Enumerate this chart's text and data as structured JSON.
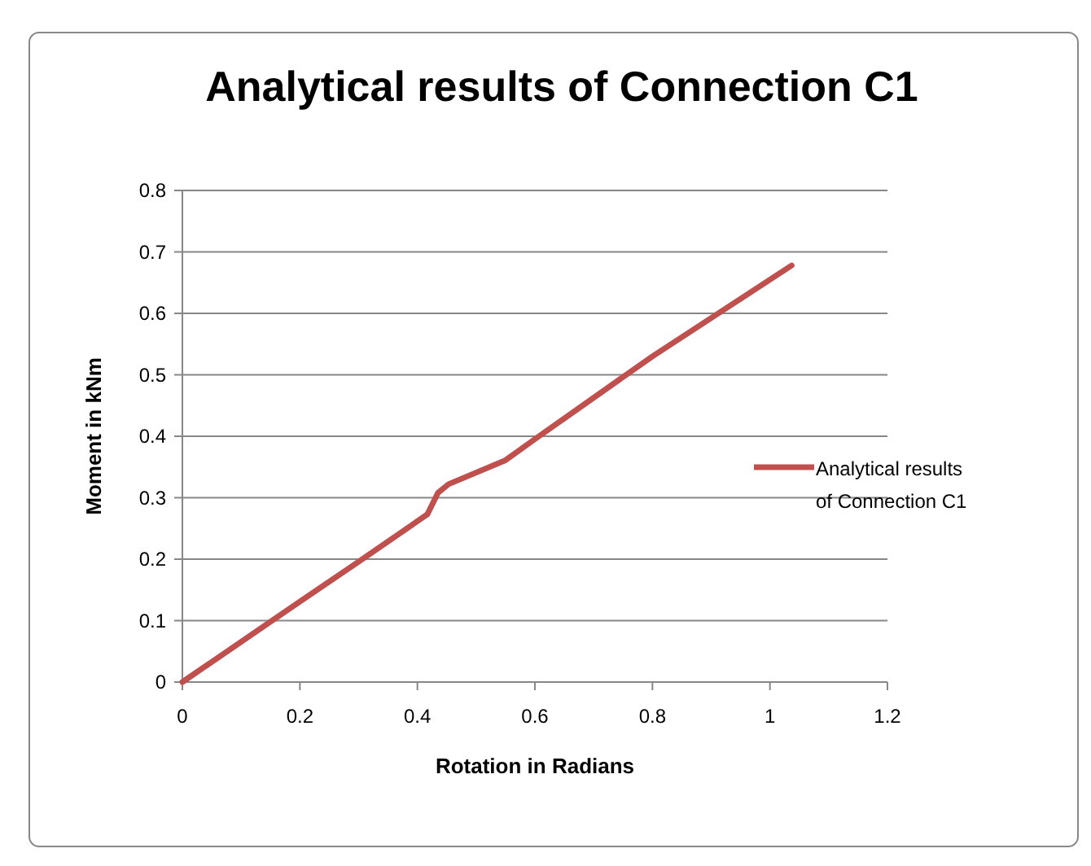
{
  "chart_data": {
    "type": "line",
    "title": "Analytical results of Connection C1",
    "xlabel": "Rotation in Radians",
    "ylabel": "Moment in kNm",
    "xlim": [
      0,
      1.2
    ],
    "xticks": [
      0,
      0.2,
      0.4,
      0.6,
      0.8,
      1,
      1.2
    ],
    "ylim": [
      0,
      0.8
    ],
    "yticks": [
      0,
      0.1,
      0.2,
      0.3,
      0.4,
      0.5,
      0.6,
      0.7,
      0.8
    ],
    "grid": "y",
    "legend": "right",
    "marker": "none",
    "line_style": "solid",
    "series": [
      {
        "name": "Analytical results of Connection C1",
        "color": "#c0504d",
        "x": [
          0,
          0.2,
          0.3,
          0.417,
          0.435,
          0.453,
          0.55,
          0.601,
          0.8,
          1.037
        ],
        "values": [
          0,
          0.131,
          0.196,
          0.273,
          0.308,
          0.322,
          0.361,
          0.396,
          0.53,
          0.678
        ]
      }
    ]
  }
}
